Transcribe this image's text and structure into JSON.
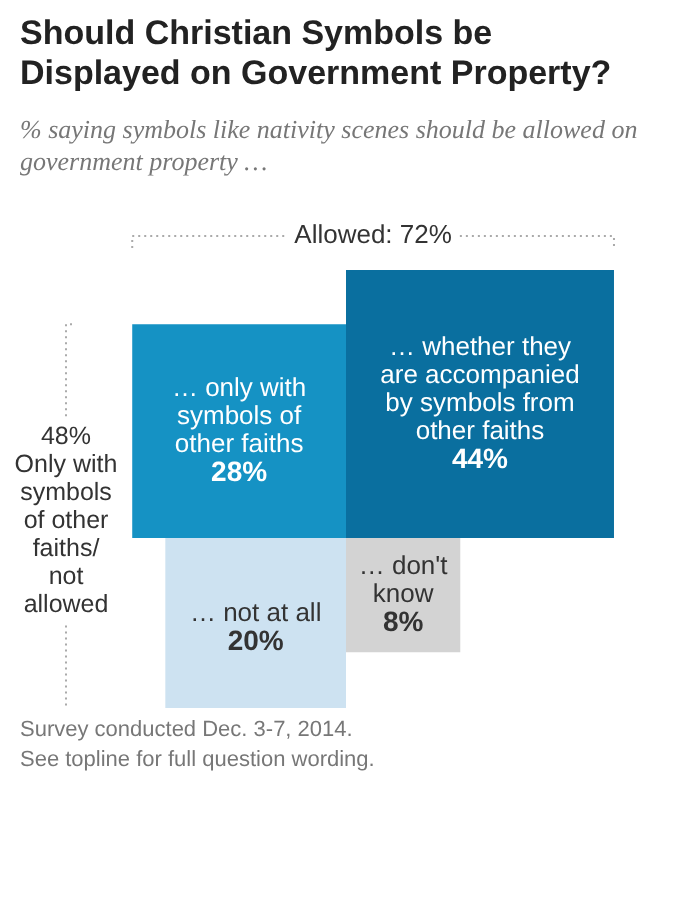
{
  "chart_data": {
    "type": "other",
    "title": "Should Christian Symbols be Displayed on Government Property?",
    "subtitle": "% saying symbols like nativity scenes should be allowed on government property …",
    "categories": [
      "… only with symbols of other faiths",
      "… whether they are accompanied by symbols from other faiths",
      "… not at all",
      "… don't know"
    ],
    "values": [
      28,
      44,
      20,
      8
    ],
    "value_labels": [
      "28%",
      "44%",
      "20%",
      "8%"
    ],
    "colors": [
      "#1592c4",
      "#0a6f9f",
      "#cde2f1",
      "#d3d3d3"
    ],
    "annotations": [
      "Allowed: 72%",
      "48% Only with symbols of other faiths/ not allowed",
      "Survey conducted Dec. 3-7, 2014.",
      "See topline for full question wording."
    ]
  }
}
